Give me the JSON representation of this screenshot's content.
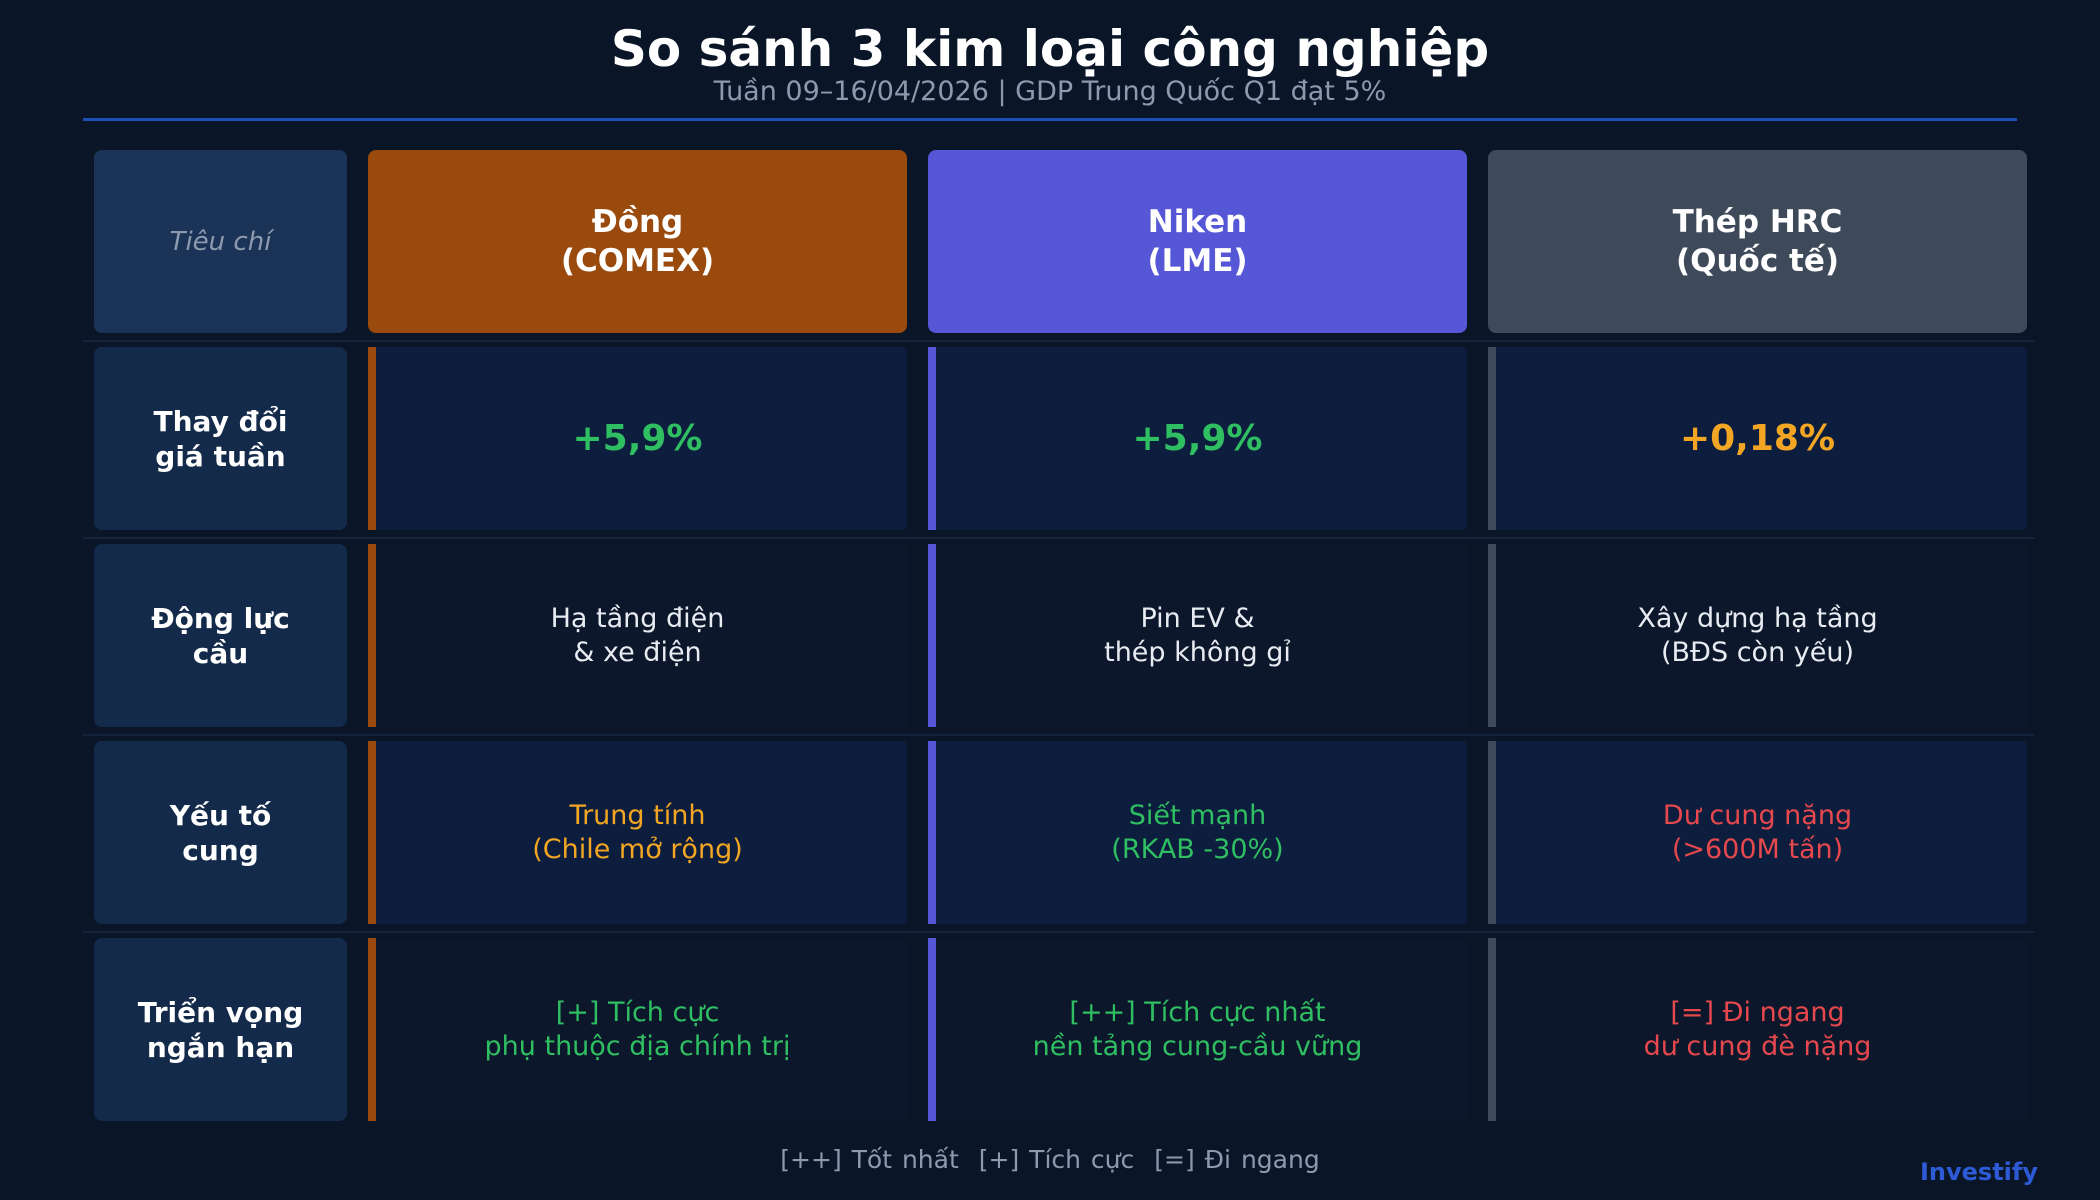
{
  "header": {
    "title": "So sánh 3 kim loại công nghiệp",
    "subtitle": "Tuần 09–16/04/2026 | GDP Trung Quốc Q1 đạt 5%"
  },
  "table": {
    "corner": "Tiêu chí",
    "columns": [
      {
        "lines": [
          "Đồng",
          "(COMEX)"
        ],
        "color": "#9a4a0c"
      },
      {
        "lines": [
          "Niken",
          "(LME)"
        ],
        "color": "#5657d6"
      },
      {
        "lines": [
          "Thép HRC",
          "(Quốc tế)"
        ],
        "color": "#3e4a5a"
      }
    ],
    "rows": [
      {
        "label": [
          "Thay đổi",
          "giá tuần"
        ],
        "cells": [
          {
            "lines": [
              "+5,9%"
            ],
            "color": "#2fbf62"
          },
          {
            "lines": [
              "+5,9%"
            ],
            "color": "#2fbf62"
          },
          {
            "lines": [
              "+0,18%"
            ],
            "color": "#f2a623"
          }
        ]
      },
      {
        "label": [
          "Động lực",
          "cầu"
        ],
        "cells": [
          {
            "lines": [
              "Hạ tầng điện",
              "& xe điện"
            ],
            "color": "#e8ecf2"
          },
          {
            "lines": [
              "Pin EV &",
              "thép không gỉ"
            ],
            "color": "#e8ecf2"
          },
          {
            "lines": [
              "Xây dựng hạ tầng",
              "(BĐS còn yếu)"
            ],
            "color": "#e8ecf2"
          }
        ]
      },
      {
        "label": [
          "Yếu tố",
          "cung"
        ],
        "cells": [
          {
            "lines": [
              "Trung tính",
              "(Chile mở rộng)"
            ],
            "color": "#f2a623"
          },
          {
            "lines": [
              "Siết mạnh",
              "(RKAB -30%)"
            ],
            "color": "#2fbf62"
          },
          {
            "lines": [
              "Dư cung nặng",
              "(>600M tấn)"
            ],
            "color": "#e5484d"
          }
        ]
      },
      {
        "label": [
          "Triển vọng",
          "ngắn hạn"
        ],
        "cells": [
          {
            "lines": [
              "[+] Tích cực",
              "phụ thuộc địa chính trị"
            ],
            "color": "#2fbf62"
          },
          {
            "lines": [
              "[++] Tích cực nhất",
              "nền tảng cung-cầu vững"
            ],
            "color": "#2fbf62"
          },
          {
            "lines": [
              "[=] Đi ngang",
              "dư cung đè nặng"
            ],
            "color": "#e5484d"
          }
        ]
      }
    ]
  },
  "legend": [
    "[++] Tốt nhất",
    "[+] Tích cực",
    "[=] Đi ngang"
  ],
  "brand": "Investify"
}
